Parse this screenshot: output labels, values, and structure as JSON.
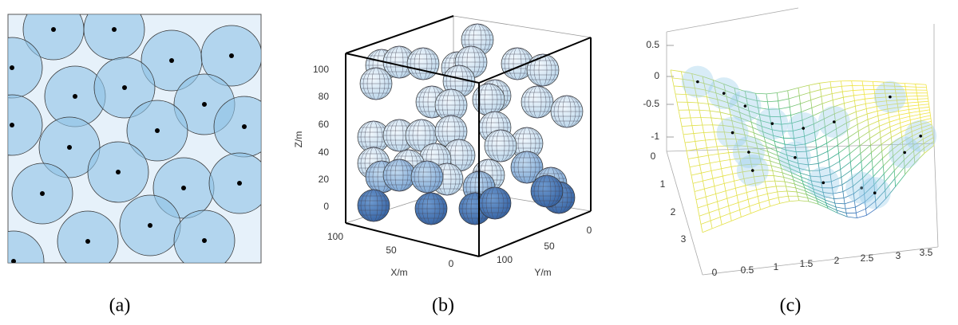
{
  "panels": [
    {
      "label": "(a)"
    },
    {
      "label": "(b)",
      "z_axis": {
        "title": "Z/m",
        "ticks": [
          "100",
          "80",
          "60",
          "40",
          "20",
          "0"
        ]
      },
      "x_axis": {
        "title": "X/m",
        "ticks": [
          "100",
          "50",
          "0"
        ]
      },
      "y_axis": {
        "title": "Y/m",
        "ticks": [
          "0",
          "50",
          "100"
        ]
      }
    },
    {
      "label": "(c)",
      "z_ticks": [
        "0.5",
        "0",
        "-0.5",
        "-1"
      ],
      "y_ticks": [
        "0",
        "1",
        "2",
        "3"
      ],
      "x_ticks": [
        "0",
        "0.5",
        "1",
        "1.5",
        "2",
        "2.5",
        "3",
        "3.5"
      ]
    }
  ]
}
